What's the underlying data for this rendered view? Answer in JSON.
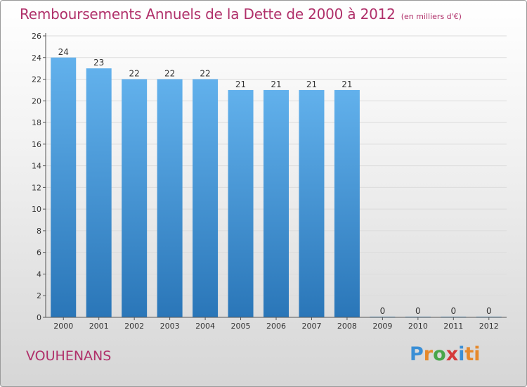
{
  "header": {
    "title": "Remboursements Annuels de la Dette de 2000 à 2012",
    "unit": "(en milliers d'€)"
  },
  "footer": {
    "place": "VOUHENANS",
    "logo_letters": [
      "P",
      "r",
      "o",
      "x",
      "i",
      "ti"
    ]
  },
  "colors": {
    "title": "#b0306a",
    "bar_top": "#62b1ec",
    "bar_bottom": "#2a76b8",
    "grid": "#dcdcdc"
  },
  "chart_data": {
    "type": "bar",
    "title": "Remboursements Annuels de la Dette de 2000 à 2012",
    "xlabel": "",
    "ylabel": "",
    "categories": [
      "2000",
      "2001",
      "2002",
      "2003",
      "2004",
      "2005",
      "2006",
      "2007",
      "2008",
      "2009",
      "2010",
      "2011",
      "2012"
    ],
    "values": [
      24,
      23,
      22,
      22,
      22,
      21,
      21,
      21,
      21,
      0,
      0,
      0,
      0
    ],
    "data_labels": [
      "24",
      "23",
      "22",
      "22",
      "22",
      "21",
      "21",
      "21",
      "21",
      "0",
      "0",
      "0",
      "0"
    ],
    "ylim": [
      0,
      26
    ],
    "yticks": [
      "0",
      "2",
      "4",
      "6",
      "8",
      "10",
      "12",
      "14",
      "16",
      "18",
      "20",
      "22",
      "24",
      "26"
    ],
    "grid": true,
    "legend": "none"
  }
}
